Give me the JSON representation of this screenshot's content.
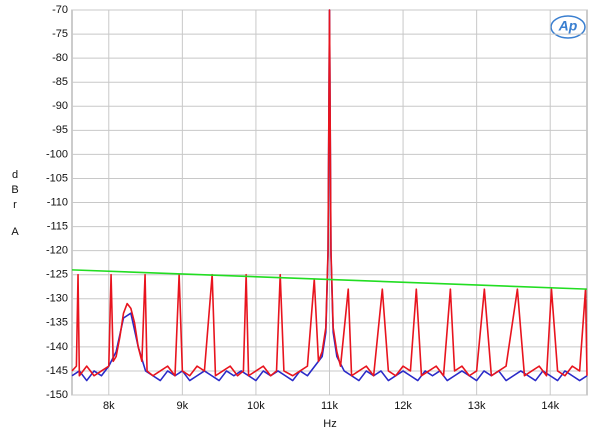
{
  "chart_data": {
    "type": "line",
    "logo": "Ap",
    "x_label": "Hz",
    "y_label": [
      "d",
      "B",
      "r",
      "A"
    ],
    "xlim": [
      7500,
      14500
    ],
    "ylim": [
      -150,
      -70
    ],
    "grid": true,
    "xticks": [
      {
        "value": 8000,
        "label": "8k"
      },
      {
        "value": 9000,
        "label": "9k"
      },
      {
        "value": 10000,
        "label": "10k"
      },
      {
        "value": 11000,
        "label": "11k"
      },
      {
        "value": 12000,
        "label": "12k"
      },
      {
        "value": 13000,
        "label": "13k"
      },
      {
        "value": 14000,
        "label": "14k"
      }
    ],
    "yticks": [
      -70,
      -75,
      -80,
      -85,
      -90,
      -95,
      -100,
      -105,
      -110,
      -115,
      -120,
      -125,
      -130,
      -135,
      -140,
      -145,
      -150
    ],
    "series": [
      {
        "color": "#2a2ac8",
        "x": [
          7500,
          7600,
          7700,
          7800,
          7900,
          8000,
          8100,
          8200,
          8300,
          8400,
          8500,
          8600,
          8700,
          8800,
          8900,
          9000,
          9100,
          9200,
          9300,
          9400,
          9500,
          9600,
          9700,
          9800,
          9900,
          10000,
          10100,
          10200,
          10300,
          10400,
          10500,
          10600,
          10700,
          10800,
          10900,
          10950,
          10980,
          11000,
          11020,
          11050,
          11100,
          11200,
          11300,
          11400,
          11500,
          11600,
          11700,
          11800,
          11900,
          12000,
          12100,
          12200,
          12300,
          12400,
          12500,
          12600,
          12700,
          12800,
          12900,
          13000,
          13100,
          13200,
          13300,
          13400,
          13500,
          13600,
          13700,
          13800,
          13900,
          14000,
          14100,
          14200,
          14300,
          14400,
          14500
        ],
        "values": [
          -146,
          -145,
          -147,
          -145,
          -146,
          -144,
          -141,
          -134,
          -133,
          -140,
          -145,
          -146,
          -147,
          -145,
          -146,
          -145,
          -147,
          -146,
          -145,
          -146,
          -147,
          -145,
          -146,
          -145,
          -146,
          -147,
          -145,
          -146,
          -145,
          -146,
          -147,
          -145,
          -146,
          -144,
          -142,
          -137,
          -121,
          -70,
          -121,
          -137,
          -142,
          -145,
          -146,
          -147,
          -145,
          -146,
          -145,
          -147,
          -146,
          -145,
          -146,
          -147,
          -145,
          -146,
          -145,
          -147,
          -146,
          -145,
          -146,
          -147,
          -145,
          -146,
          -145,
          -147,
          -146,
          -145,
          -146,
          -147,
          -145,
          -146,
          -147,
          -145,
          -146,
          -147,
          -146
        ]
      },
      {
        "color": "#e8141e",
        "x": [
          7500,
          7560,
          7582,
          7600,
          7700,
          7800,
          7900,
          8000,
          8031,
          8060,
          8100,
          8150,
          8200,
          8250,
          8300,
          8350,
          8400,
          8450,
          8493,
          8520,
          8600,
          8700,
          8800,
          8900,
          8956,
          9000,
          9100,
          9200,
          9300,
          9405,
          9450,
          9550,
          9650,
          9750,
          9830,
          9867,
          9900,
          10000,
          10100,
          10200,
          10280,
          10330,
          10380,
          10500,
          10600,
          10700,
          10793,
          10850,
          10900,
          10950,
          10980,
          11000,
          11020,
          11050,
          11100,
          11150,
          11255,
          11300,
          11400,
          11500,
          11600,
          11718,
          11800,
          11900,
          12000,
          12100,
          12180,
          12250,
          12350,
          12450,
          12550,
          12643,
          12700,
          12800,
          12900,
          13000,
          13105,
          13200,
          13300,
          13400,
          13554,
          13650,
          13750,
          13850,
          13950,
          14017,
          14100,
          14200,
          14300,
          14400,
          14480,
          14500
        ],
        "values": [
          -145,
          -144,
          -125,
          -146,
          -144,
          -146,
          -145,
          -144,
          -125,
          -143,
          -142,
          -138,
          -133,
          -131,
          -132,
          -135,
          -140,
          -143,
          -125,
          -145,
          -146,
          -145,
          -144,
          -146,
          -125,
          -145,
          -146,
          -144,
          -145,
          -125,
          -146,
          -145,
          -144,
          -146,
          -145,
          -125,
          -146,
          -145,
          -144,
          -146,
          -145,
          -125,
          -145,
          -146,
          -145,
          -144,
          -126,
          -143,
          -141,
          -136,
          -120,
          -70,
          -120,
          -136,
          -141,
          -144,
          -128,
          -146,
          -145,
          -144,
          -146,
          -128,
          -145,
          -146,
          -144,
          -145,
          -128,
          -146,
          -145,
          -144,
          -146,
          -128,
          -145,
          -144,
          -146,
          -145,
          -128,
          -146,
          -145,
          -144,
          -128,
          -146,
          -145,
          -144,
          -146,
          -128,
          -145,
          -146,
          -144,
          -145,
          -128,
          -146
        ]
      },
      {
        "color": "#22dd22",
        "x": [
          7500,
          14500
        ],
        "values": [
          -124,
          -128
        ]
      }
    ]
  }
}
